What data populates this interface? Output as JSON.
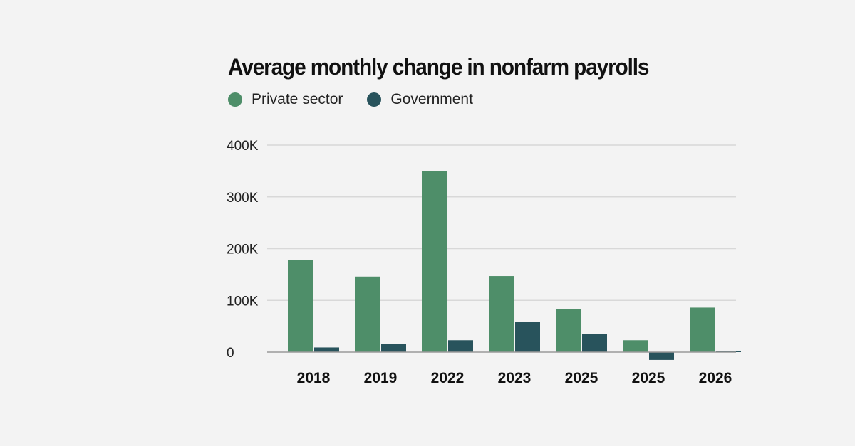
{
  "colors": {
    "background": "#f3f3f3",
    "private": "#4e8e69",
    "government": "#28535c",
    "grid": "#d8d8d8",
    "baseline": "#9a9a9a"
  },
  "chart_data": {
    "type": "bar",
    "title": "Average monthly change in nonfarm payrolls",
    "categories": [
      "2018",
      "2019",
      "2022",
      "2023",
      "2025",
      "2025",
      "2026"
    ],
    "series": [
      {
        "name": "Private sector",
        "values": [
          178000,
          146000,
          350000,
          147000,
          83000,
          23000,
          86000
        ]
      },
      {
        "name": "Government",
        "values": [
          9000,
          16000,
          23000,
          58000,
          35000,
          -15000,
          2000
        ]
      }
    ],
    "yticks": [
      0,
      100000,
      200000,
      300000,
      400000
    ],
    "ytick_labels": [
      "0",
      "100K",
      "200K",
      "300K",
      "400K"
    ],
    "ylim": [
      -15000,
      400000
    ],
    "grid": true,
    "legend_position": "top-left"
  }
}
